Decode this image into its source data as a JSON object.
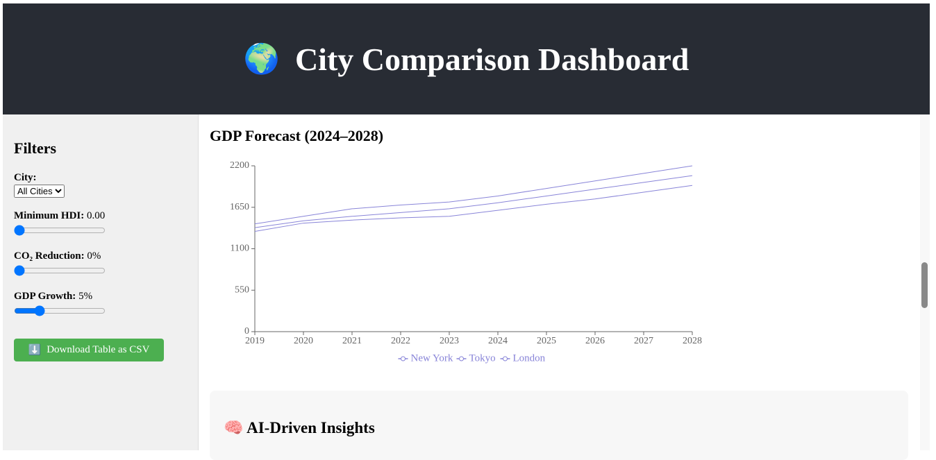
{
  "header": {
    "icon": "🌍",
    "title": "City Comparison Dashboard"
  },
  "sidebar": {
    "title": "Filters",
    "city": {
      "label": "City:",
      "option": "All Cities"
    },
    "hdi": {
      "label": "Minimum HDI:",
      "value": "0.00"
    },
    "co2": {
      "label": "CO₂ Reduction:",
      "value": "0%"
    },
    "gdp": {
      "label": "GDP Growth:",
      "value": "5%"
    },
    "button": {
      "icon": "⬇️",
      "label": "Download Table as CSV"
    }
  },
  "chart_data": {
    "type": "line",
    "title": "GDP Forecast (2024–2028)",
    "x": [
      2019,
      2020,
      2021,
      2022,
      2023,
      2024,
      2025,
      2026,
      2027,
      2028
    ],
    "xlim": [
      2019,
      2028
    ],
    "xticks": [
      2019,
      2020,
      2021,
      2022,
      2023,
      2024,
      2025,
      2026,
      2027,
      2028
    ],
    "ylim": [
      0,
      2200
    ],
    "yticks": [
      0,
      550,
      1100,
      1650,
      2200
    ],
    "series": [
      {
        "name": "New York",
        "color": "#8884d8",
        "values": [
          1430,
          1530,
          1630,
          1680,
          1720,
          1800,
          1900,
          2000,
          2100,
          2200
        ]
      },
      {
        "name": "Tokyo",
        "color": "#8884d8",
        "values": [
          1380,
          1470,
          1530,
          1580,
          1630,
          1710,
          1800,
          1890,
          1980,
          2070
        ]
      },
      {
        "name": "London",
        "color": "#8884d8",
        "values": [
          1330,
          1440,
          1480,
          1510,
          1530,
          1610,
          1690,
          1760,
          1850,
          1940
        ]
      }
    ]
  },
  "insights": {
    "icon": "🧠",
    "title": "AI-Driven Insights"
  }
}
